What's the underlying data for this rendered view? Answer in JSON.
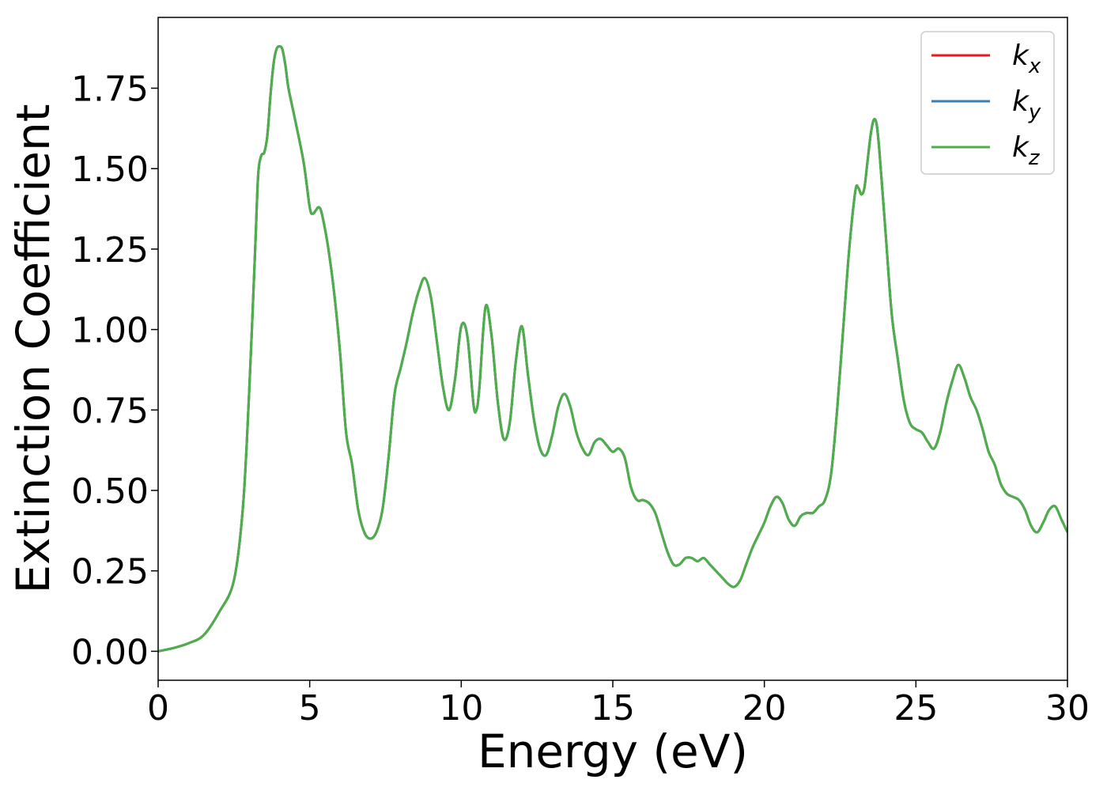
{
  "chart_data": {
    "type": "line",
    "xlabel": "Energy (eV)",
    "ylabel": "Extinction Coefficient",
    "xlim": [
      0,
      30
    ],
    "ylim": [
      -0.09,
      1.97
    ],
    "xticks": [
      0,
      5,
      10,
      15,
      20,
      25,
      30
    ],
    "xtick_labels": [
      "0",
      "5",
      "10",
      "15",
      "20",
      "25",
      "30"
    ],
    "yticks": [
      0.0,
      0.25,
      0.5,
      0.75,
      1.0,
      1.25,
      1.5,
      1.75
    ],
    "ytick_labels": [
      "0.00",
      "0.25",
      "0.50",
      "0.75",
      "1.00",
      "1.25",
      "1.50",
      "1.75"
    ],
    "grid": false,
    "legend_position": "top-right",
    "x": [
      0,
      0.5,
      1.0,
      1.5,
      2.0,
      2.5,
      2.8,
      3.0,
      3.2,
      3.3,
      3.4,
      3.5,
      3.6,
      3.7,
      3.8,
      3.9,
      4.0,
      4.1,
      4.2,
      4.3,
      4.5,
      4.8,
      5.0,
      5.1,
      5.2,
      5.3,
      5.4,
      5.6,
      5.8,
      6.0,
      6.2,
      6.4,
      6.6,
      6.8,
      7.0,
      7.2,
      7.4,
      7.6,
      7.8,
      8.0,
      8.2,
      8.4,
      8.6,
      8.8,
      9.0,
      9.2,
      9.4,
      9.6,
      9.8,
      10.0,
      10.2,
      10.4,
      10.5,
      10.6,
      10.8,
      11.0,
      11.2,
      11.4,
      11.6,
      11.8,
      12.0,
      12.2,
      12.4,
      12.6,
      12.8,
      13.0,
      13.2,
      13.4,
      13.6,
      13.8,
      14.0,
      14.2,
      14.4,
      14.6,
      14.8,
      15.0,
      15.2,
      15.4,
      15.6,
      15.8,
      16.0,
      16.2,
      16.4,
      16.6,
      16.8,
      17.0,
      17.2,
      17.4,
      17.6,
      17.8,
      18.0,
      18.2,
      18.4,
      18.6,
      18.8,
      19.0,
      19.2,
      19.4,
      19.6,
      19.8,
      20.0,
      20.2,
      20.4,
      20.6,
      20.8,
      21.0,
      21.2,
      21.4,
      21.6,
      21.8,
      22.0,
      22.2,
      22.4,
      22.6,
      22.8,
      23.0,
      23.1,
      23.2,
      23.3,
      23.4,
      23.5,
      23.6,
      23.7,
      23.8,
      24.0,
      24.2,
      24.4,
      24.6,
      24.8,
      25.0,
      25.2,
      25.4,
      25.6,
      25.8,
      26.0,
      26.2,
      26.4,
      26.6,
      26.8,
      27.0,
      27.2,
      27.4,
      27.6,
      27.8,
      28.0,
      28.2,
      28.4,
      28.6,
      28.8,
      29.0,
      29.2,
      29.4,
      29.6,
      29.8,
      30.0
    ],
    "y": [
      0.0,
      0.01,
      0.025,
      0.05,
      0.12,
      0.22,
      0.45,
      0.8,
      1.25,
      1.48,
      1.54,
      1.55,
      1.6,
      1.72,
      1.82,
      1.87,
      1.88,
      1.87,
      1.82,
      1.75,
      1.66,
      1.52,
      1.38,
      1.36,
      1.37,
      1.38,
      1.36,
      1.26,
      1.12,
      0.93,
      0.68,
      0.58,
      0.44,
      0.37,
      0.35,
      0.37,
      0.44,
      0.6,
      0.8,
      0.88,
      0.96,
      1.05,
      1.12,
      1.16,
      1.1,
      0.96,
      0.82,
      0.75,
      0.85,
      1.01,
      0.98,
      0.77,
      0.75,
      0.82,
      1.07,
      0.98,
      0.78,
      0.66,
      0.71,
      0.9,
      1.01,
      0.86,
      0.72,
      0.63,
      0.61,
      0.67,
      0.76,
      0.8,
      0.76,
      0.68,
      0.63,
      0.61,
      0.65,
      0.66,
      0.64,
      0.62,
      0.63,
      0.6,
      0.51,
      0.47,
      0.47,
      0.46,
      0.43,
      0.37,
      0.31,
      0.27,
      0.27,
      0.29,
      0.29,
      0.28,
      0.29,
      0.27,
      0.25,
      0.23,
      0.21,
      0.2,
      0.22,
      0.27,
      0.32,
      0.36,
      0.4,
      0.45,
      0.48,
      0.46,
      0.41,
      0.39,
      0.42,
      0.43,
      0.43,
      0.45,
      0.47,
      0.55,
      0.75,
      1.0,
      1.25,
      1.43,
      1.44,
      1.42,
      1.44,
      1.52,
      1.6,
      1.65,
      1.64,
      1.55,
      1.3,
      1.05,
      0.91,
      0.78,
      0.71,
      0.69,
      0.68,
      0.65,
      0.63,
      0.68,
      0.77,
      0.84,
      0.89,
      0.85,
      0.79,
      0.75,
      0.69,
      0.62,
      0.58,
      0.52,
      0.49,
      0.48,
      0.47,
      0.44,
      0.39,
      0.37,
      0.4,
      0.44,
      0.45,
      0.41,
      0.37
    ],
    "series": [
      {
        "name": "k_x",
        "color": "#e41a1c"
      },
      {
        "name": "k_y",
        "color": "#377eb8"
      },
      {
        "name": "k_z",
        "color": "#4daf4a"
      }
    ]
  }
}
